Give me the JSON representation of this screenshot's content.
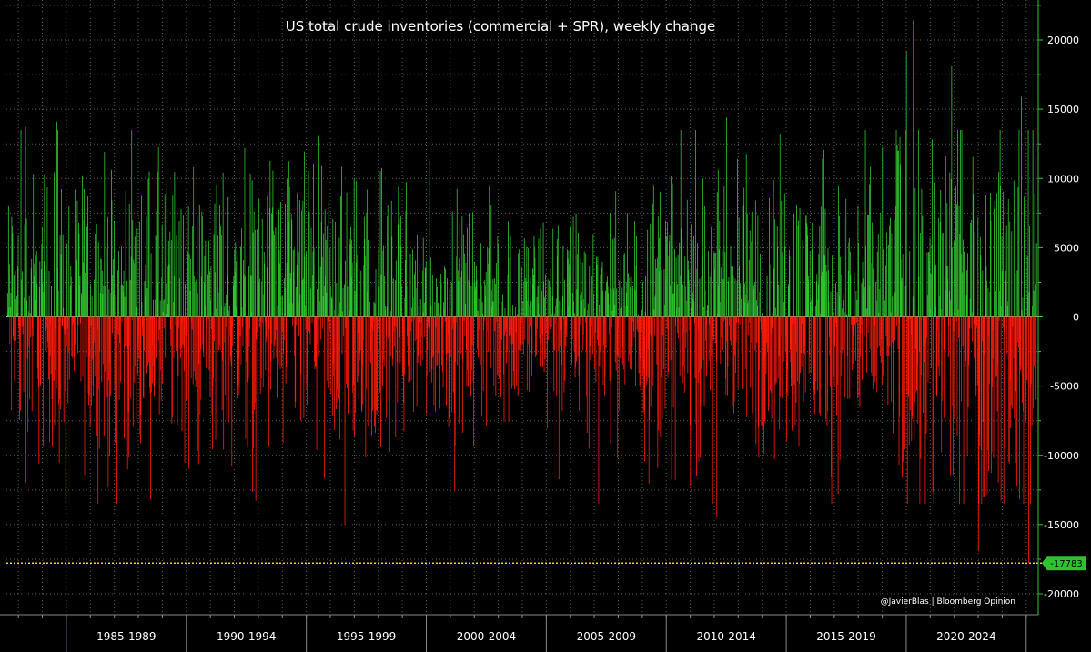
{
  "chart_data": {
    "type": "bar",
    "title": "US total crude inventories (commercial + SPR), weekly change",
    "xlabel": "",
    "ylabel": "",
    "ylim": [
      -20000,
      22000
    ],
    "y_ticks": [
      20000,
      15000,
      10000,
      5000,
      0,
      -5000,
      -10000,
      -15000,
      -20000
    ],
    "y_tick_labels": [
      "20000",
      "15000",
      "10000",
      "5000",
      "0",
      "-5000",
      "-10000",
      "-15000",
      "-20000"
    ],
    "x_period_labels": [
      "1985-1989",
      "1990-1994",
      "1995-1999",
      "2000-2004",
      "2005-2009",
      "2010-2014",
      "2015-2019",
      "2020-2024"
    ],
    "x_range_years": [
      1982.5,
      2025.5
    ],
    "grid": true,
    "positive_color": "#2fc22f",
    "negative_color": "#ff1a0a",
    "grid_color": "#5a5a5a",
    "reference_line": {
      "value": -17783,
      "label": "-17783",
      "color": "#f2d400"
    },
    "credit": "@JavierBlas | Bloomberg Opinion",
    "notable_points": [
      {
        "x": 2020.3,
        "value": 21400
      },
      {
        "x": 2020.0,
        "value": 19200
      },
      {
        "x": 2021.9,
        "value": 18100
      },
      {
        "x": 2024.8,
        "value": 15900
      },
      {
        "x": 2012.5,
        "value": 14400
      },
      {
        "x": 1983.3,
        "value": 13700
      },
      {
        "x": 1984.6,
        "value": 14100
      },
      {
        "x": 1996.6,
        "value": -15000
      },
      {
        "x": 2023.0,
        "value": -16900
      },
      {
        "x": 2012.1,
        "value": -14500
      },
      {
        "x": 2025.1,
        "value": -17783
      }
    ]
  }
}
